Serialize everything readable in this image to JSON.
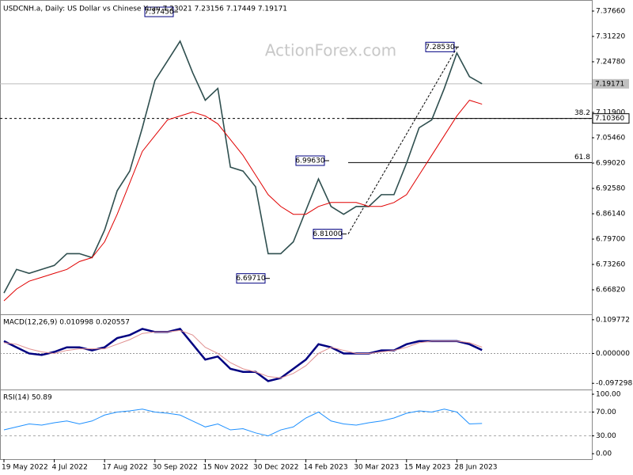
{
  "chart_data": [
    {
      "type": "line",
      "title": "USDCNH.a, Daily:  US Dollar vs Chinese Yuan  7.23021 7.23156 7.17449 7.19171",
      "watermark": "ActionForex.com",
      "x": [
        "19 May 2022",
        null,
        null,
        null,
        "4 Jul 2022",
        null,
        null,
        null,
        "17 Aug 2022",
        null,
        null,
        null,
        "30 Sep 2022",
        null,
        null,
        null,
        "15 Nov 2022",
        null,
        null,
        null,
        "30 Dec 2022",
        null,
        null,
        null,
        "14 Feb 2023",
        null,
        null,
        null,
        "30 Mar 2023",
        null,
        null,
        null,
        "15 May 2023",
        null,
        null,
        null,
        "28 Jun 2023",
        null,
        null
      ],
      "series": [
        {
          "color": "#2f4f4f",
          "values": [
            6.66,
            6.72,
            6.71,
            6.72,
            6.73,
            6.76,
            6.76,
            6.75,
            6.82,
            6.92,
            6.97,
            7.08,
            7.2,
            7.25,
            7.3,
            7.22,
            7.15,
            7.18,
            6.98,
            6.97,
            6.93,
            6.76,
            6.76,
            6.79,
            6.87,
            6.95,
            6.88,
            6.86,
            6.88,
            6.88,
            6.91,
            6.91,
            6.99,
            7.08,
            7.1,
            7.18,
            7.27,
            7.21,
            7.19171
          ]
        },
        {
          "color": "#e00000",
          "values": [
            6.64,
            6.67,
            6.69,
            6.7,
            6.71,
            6.72,
            6.74,
            6.75,
            6.79,
            6.86,
            6.94,
            7.02,
            7.06,
            7.1,
            7.11,
            7.12,
            7.11,
            7.09,
            7.05,
            7.01,
            6.96,
            6.91,
            6.88,
            6.86,
            6.86,
            6.88,
            6.89,
            6.89,
            6.89,
            6.88,
            6.88,
            6.89,
            6.91,
            6.96,
            7.01,
            7.06,
            7.11,
            7.15,
            7.14
          ]
        }
      ],
      "ylim": [
        6.6079,
        7.3987
      ],
      "yticks": [
        {
          "value": 7.3766,
          "label": "7.37660"
        },
        {
          "value": 7.3122,
          "label": "7.31220"
        },
        {
          "value": 7.2478,
          "label": "7.24780"
        },
        {
          "value": 7.119,
          "label": "7.11900"
        },
        {
          "value": 7.0546,
          "label": "7.05460"
        },
        {
          "value": 6.9902,
          "label": "6.99020"
        },
        {
          "value": 6.9258,
          "label": "6.92580"
        },
        {
          "value": 6.8614,
          "label": "6.86140"
        },
        {
          "value": 6.797,
          "label": "6.79700"
        },
        {
          "value": 6.7326,
          "label": "6.73260"
        },
        {
          "value": 6.6682,
          "label": "6.66820"
        }
      ],
      "annotations": [
        {
          "value": 7.3745,
          "label": "7.37450"
        },
        {
          "value": 7.2853,
          "label": "7.28530"
        },
        {
          "value": 6.9963,
          "label": "6.99630"
        },
        {
          "value": 6.81,
          "label": "6.81000"
        },
        {
          "value": 6.6971,
          "label": "6.69710"
        }
      ],
      "levels": [
        {
          "name": "38.2",
          "value": 7.1036,
          "label": "7.10360"
        },
        {
          "name": "61.8",
          "value": 6.9916
        }
      ],
      "last": {
        "value": 7.19171,
        "label": "7.19171"
      }
    },
    {
      "type": "line",
      "title": "MACD(12,26,9) 0.010998 0.020557",
      "series": [
        {
          "color": "#000080",
          "values": [
            0.04,
            0.02,
            0,
            -0.005,
            0.005,
            0.02,
            0.02,
            0.01,
            0.02,
            0.05,
            0.06,
            0.08,
            0.07,
            0.07,
            0.08,
            0.03,
            -0.02,
            -0.01,
            -0.05,
            -0.06,
            -0.06,
            -0.09,
            -0.08,
            -0.05,
            -0.02,
            0.03,
            0.02,
            0,
            0,
            0,
            0.01,
            0.01,
            0.03,
            0.04,
            0.04,
            0.04,
            0.04,
            0.03,
            0.010998
          ]
        },
        {
          "color": "#e09090",
          "values": [
            0.035,
            0.03,
            0.015,
            0.005,
            0,
            0.01,
            0.015,
            0.015,
            0.015,
            0.03,
            0.045,
            0.065,
            0.07,
            0.07,
            0.075,
            0.06,
            0.02,
            0,
            -0.03,
            -0.05,
            -0.06,
            -0.075,
            -0.08,
            -0.065,
            -0.04,
            0,
            0.02,
            0.01,
            0,
            0,
            0.005,
            0.01,
            0.02,
            0.035,
            0.04,
            0.04,
            0.04,
            0.035,
            0.020557
          ]
        }
      ],
      "ylim": [
        -0.1148,
        0.1223
      ],
      "yticks": [
        0.109772,
        {
          "value": 0,
          "label": "0.000000"
        },
        -0.097298
      ]
    },
    {
      "type": "line",
      "title": "RSI(14) 50.89",
      "series": [
        {
          "color": "#1e90ff",
          "values": [
            40,
            45,
            50,
            48,
            52,
            55,
            50,
            55,
            65,
            70,
            72,
            75,
            70,
            68,
            65,
            55,
            45,
            50,
            40,
            42,
            35,
            30,
            40,
            45,
            60,
            70,
            55,
            50,
            48,
            52,
            55,
            60,
            68,
            72,
            70,
            75,
            70,
            50,
            50.89
          ]
        }
      ],
      "ylim": [
        -9.2,
        105.3
      ],
      "yticks": [
        {
          "value": 100,
          "label": "100.00"
        },
        {
          "value": 70,
          "label": "70.00"
        },
        {
          "value": 30,
          "label": "30.00"
        },
        {
          "value": 0,
          "label": "0.00"
        }
      ],
      "grid": [
        70,
        30
      ]
    }
  ]
}
